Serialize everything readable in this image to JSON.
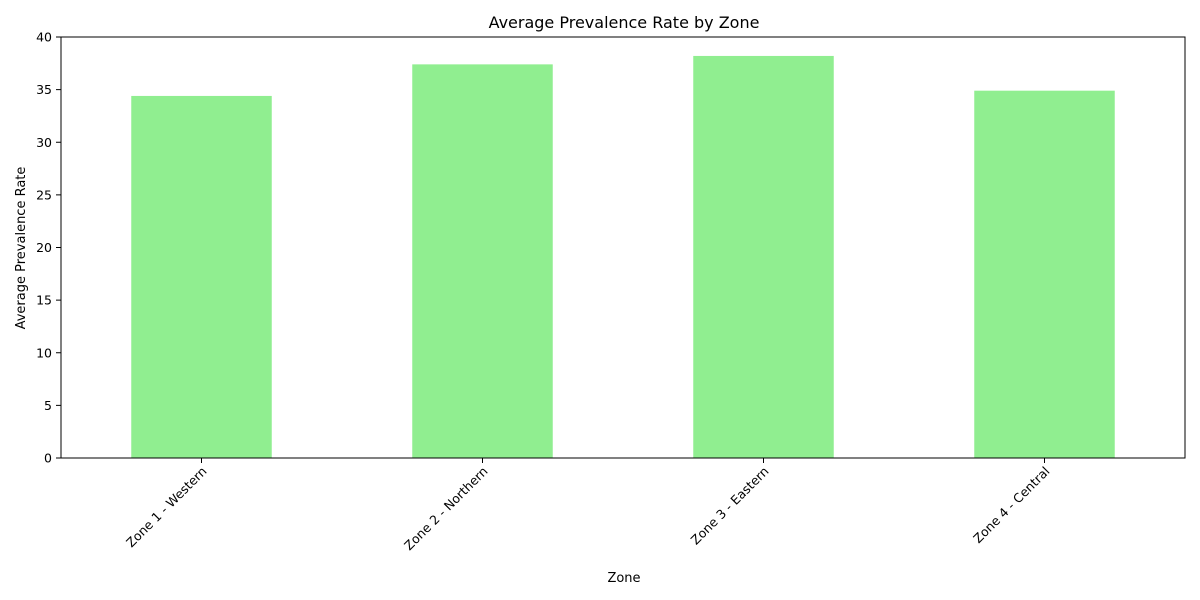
{
  "chart_data": {
    "type": "bar",
    "title": "Average Prevalence Rate by Zone",
    "xlabel": "Zone",
    "ylabel": "Average Prevalence Rate",
    "categories": [
      "Zone 1 - Western",
      "Zone 2 - Northern",
      "Zone 3 - Eastern",
      "Zone 4 - Central"
    ],
    "values": [
      34.4,
      37.4,
      38.2,
      34.9
    ],
    "ylim": [
      0,
      40
    ],
    "yticks": [
      0,
      5,
      10,
      15,
      20,
      25,
      30,
      35,
      40
    ],
    "bar_color": "#90ee90",
    "grid": false,
    "legend": "none"
  }
}
